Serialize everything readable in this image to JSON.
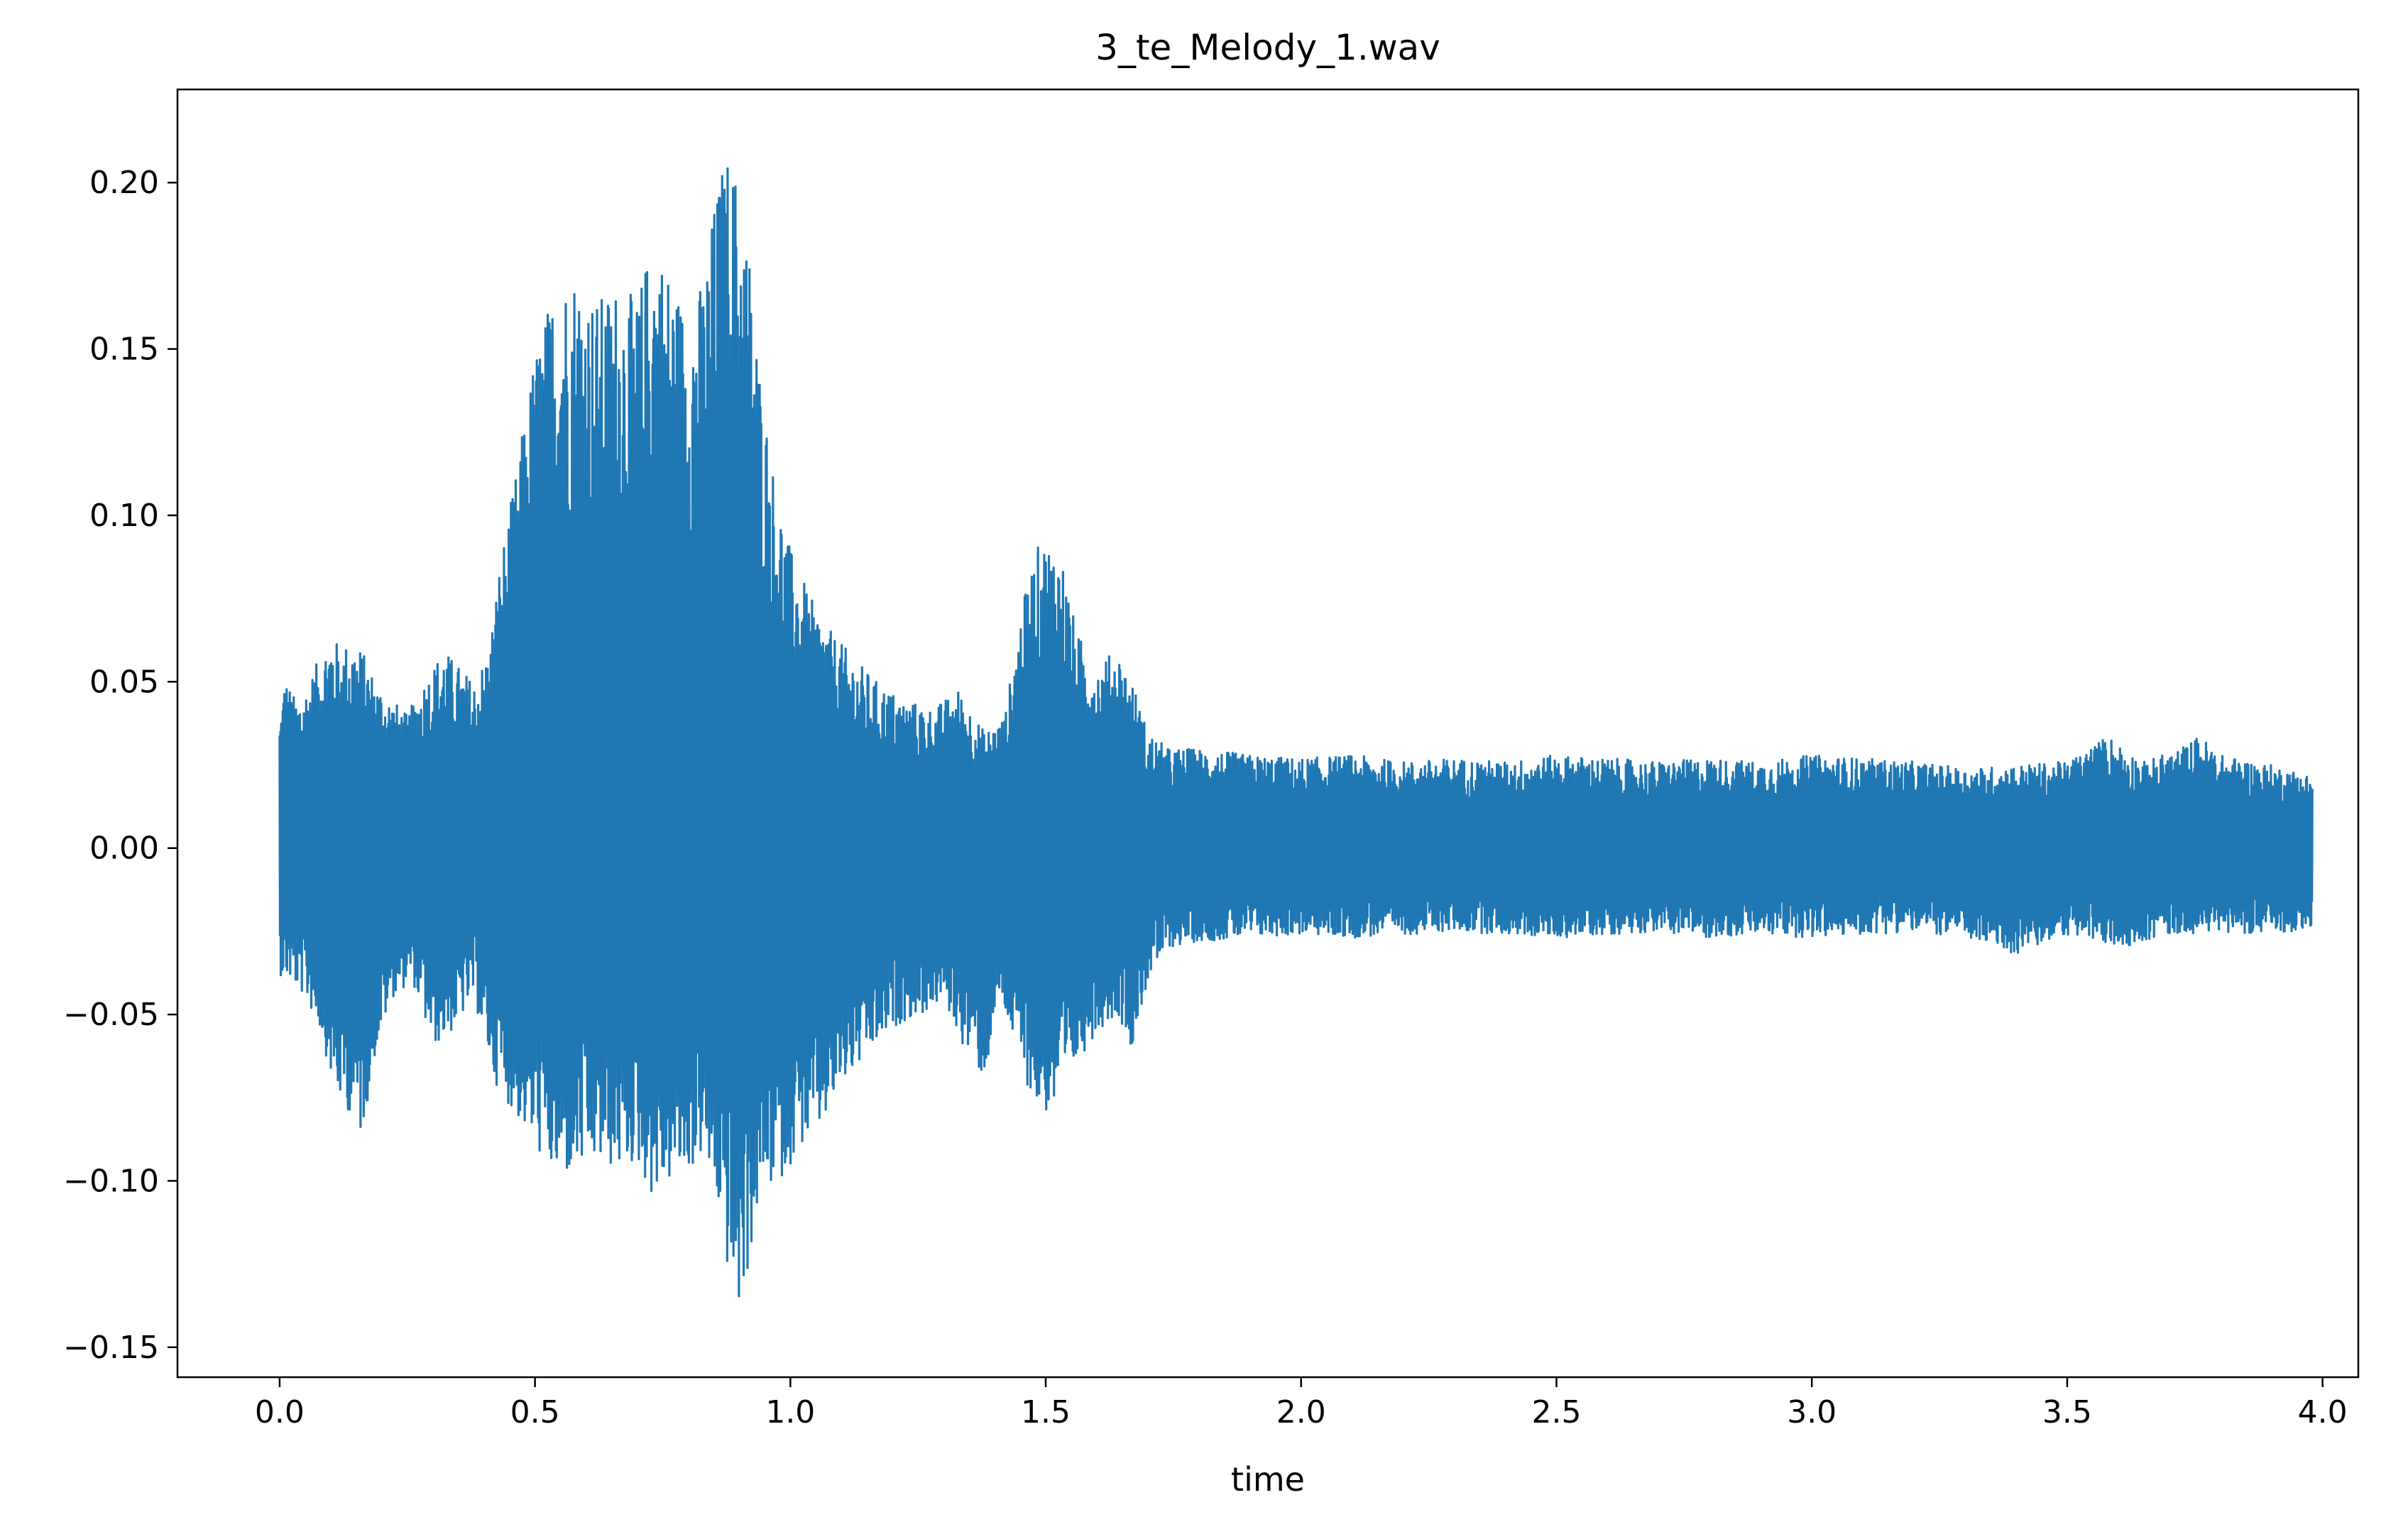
{
  "chart_data": {
    "type": "line",
    "title": "3_te_Melody_1.wav",
    "xlabel": "time",
    "ylabel": "",
    "xlim": [
      -0.2,
      4.07
    ],
    "ylim": [
      -0.159,
      0.228
    ],
    "xticks": [
      0.0,
      0.5,
      1.0,
      1.5,
      2.0,
      2.5,
      3.0,
      3.5,
      4.0
    ],
    "xtick_labels": [
      "0.0",
      "0.5",
      "1.0",
      "1.5",
      "2.0",
      "2.5",
      "3.0",
      "3.5",
      "4.0"
    ],
    "yticks": [
      0.2,
      0.15,
      0.1,
      0.05,
      0.0,
      -0.05,
      -0.1,
      -0.15
    ],
    "ytick_labels": [
      "0.20",
      "0.15",
      "0.10",
      "0.05",
      "0.00",
      "−0.05",
      "−0.10",
      "−0.15"
    ],
    "grid": false,
    "series": [
      {
        "color": "#1f77b4",
        "x_range": [
          0.0,
          3.98
        ],
        "envelope_upper": [
          [
            0.0,
            0.04
          ],
          [
            0.01,
            0.052
          ],
          [
            0.03,
            0.045
          ],
          [
            0.05,
            0.048
          ],
          [
            0.08,
            0.058
          ],
          [
            0.1,
            0.065
          ],
          [
            0.12,
            0.06
          ],
          [
            0.14,
            0.063
          ],
          [
            0.16,
            0.06
          ],
          [
            0.19,
            0.05
          ],
          [
            0.22,
            0.045
          ],
          [
            0.25,
            0.04
          ],
          [
            0.28,
            0.05
          ],
          [
            0.32,
            0.06
          ],
          [
            0.35,
            0.055
          ],
          [
            0.38,
            0.05
          ],
          [
            0.41,
            0.06
          ],
          [
            0.43,
            0.085
          ],
          [
            0.46,
            0.11
          ],
          [
            0.5,
            0.15
          ],
          [
            0.54,
            0.17
          ],
          [
            0.58,
            0.175
          ],
          [
            0.62,
            0.165
          ],
          [
            0.66,
            0.17
          ],
          [
            0.7,
            0.165
          ],
          [
            0.73,
            0.185
          ],
          [
            0.77,
            0.172
          ],
          [
            0.8,
            0.16
          ],
          [
            0.83,
            0.172
          ],
          [
            0.86,
            0.203
          ],
          [
            0.88,
            0.21
          ],
          [
            0.9,
            0.2
          ],
          [
            0.92,
            0.18
          ],
          [
            0.94,
            0.145
          ],
          [
            0.97,
            0.11
          ],
          [
            1.0,
            0.09
          ],
          [
            1.04,
            0.075
          ],
          [
            1.08,
            0.065
          ],
          [
            1.12,
            0.058
          ],
          [
            1.17,
            0.05
          ],
          [
            1.22,
            0.045
          ],
          [
            1.28,
            0.042
          ],
          [
            1.33,
            0.048
          ],
          [
            1.38,
            0.035
          ],
          [
            1.42,
            0.04
          ],
          [
            1.45,
            0.07
          ],
          [
            1.48,
            0.09
          ],
          [
            1.5,
            0.093
          ],
          [
            1.53,
            0.09
          ],
          [
            1.56,
            0.065
          ],
          [
            1.6,
            0.055
          ],
          [
            1.64,
            0.06
          ],
          [
            1.67,
            0.05
          ],
          [
            1.7,
            0.035
          ],
          [
            1.74,
            0.03
          ],
          [
            1.8,
            0.03
          ],
          [
            1.9,
            0.028
          ],
          [
            2.0,
            0.027
          ],
          [
            2.1,
            0.028
          ],
          [
            2.2,
            0.026
          ],
          [
            2.3,
            0.027
          ],
          [
            2.4,
            0.026
          ],
          [
            2.5,
            0.028
          ],
          [
            2.6,
            0.027
          ],
          [
            2.7,
            0.026
          ],
          [
            2.8,
            0.027
          ],
          [
            2.9,
            0.026
          ],
          [
            3.0,
            0.028
          ],
          [
            3.1,
            0.027
          ],
          [
            3.2,
            0.026
          ],
          [
            3.3,
            0.024
          ],
          [
            3.4,
            0.025
          ],
          [
            3.5,
            0.026
          ],
          [
            3.58,
            0.034
          ],
          [
            3.65,
            0.026
          ],
          [
            3.72,
            0.03
          ],
          [
            3.76,
            0.034
          ],
          [
            3.8,
            0.028
          ],
          [
            3.9,
            0.025
          ],
          [
            3.98,
            0.022
          ]
        ],
        "envelope_lower": [
          [
            0.0,
            -0.038
          ],
          [
            0.02,
            -0.04
          ],
          [
            0.05,
            -0.045
          ],
          [
            0.08,
            -0.055
          ],
          [
            0.11,
            -0.075
          ],
          [
            0.14,
            -0.08
          ],
          [
            0.16,
            -0.087
          ],
          [
            0.19,
            -0.06
          ],
          [
            0.22,
            -0.045
          ],
          [
            0.26,
            -0.04
          ],
          [
            0.3,
            -0.06
          ],
          [
            0.34,
            -0.055
          ],
          [
            0.38,
            -0.045
          ],
          [
            0.42,
            -0.07
          ],
          [
            0.46,
            -0.08
          ],
          [
            0.5,
            -0.09
          ],
          [
            0.54,
            -0.1
          ],
          [
            0.58,
            -0.098
          ],
          [
            0.62,
            -0.095
          ],
          [
            0.66,
            -0.097
          ],
          [
            0.7,
            -0.095
          ],
          [
            0.73,
            -0.105
          ],
          [
            0.77,
            -0.1
          ],
          [
            0.8,
            -0.098
          ],
          [
            0.83,
            -0.092
          ],
          [
            0.86,
            -0.11
          ],
          [
            0.88,
            -0.13
          ],
          [
            0.9,
            -0.14
          ],
          [
            0.92,
            -0.125
          ],
          [
            0.94,
            -0.105
          ],
          [
            0.98,
            -0.1
          ],
          [
            1.02,
            -0.09
          ],
          [
            1.06,
            -0.085
          ],
          [
            1.1,
            -0.072
          ],
          [
            1.14,
            -0.065
          ],
          [
            1.18,
            -0.058
          ],
          [
            1.22,
            -0.052
          ],
          [
            1.26,
            -0.05
          ],
          [
            1.3,
            -0.046
          ],
          [
            1.34,
            -0.06
          ],
          [
            1.38,
            -0.07
          ],
          [
            1.41,
            -0.045
          ],
          [
            1.45,
            -0.065
          ],
          [
            1.48,
            -0.078
          ],
          [
            1.5,
            -0.08
          ],
          [
            1.53,
            -0.078
          ],
          [
            1.56,
            -0.065
          ],
          [
            1.6,
            -0.055
          ],
          [
            1.64,
            -0.05
          ],
          [
            1.67,
            -0.06
          ],
          [
            1.7,
            -0.04
          ],
          [
            1.74,
            -0.03
          ],
          [
            1.8,
            -0.028
          ],
          [
            1.9,
            -0.027
          ],
          [
            2.0,
            -0.026
          ],
          [
            2.1,
            -0.027
          ],
          [
            2.2,
            -0.026
          ],
          [
            2.3,
            -0.025
          ],
          [
            2.4,
            -0.026
          ],
          [
            2.5,
            -0.027
          ],
          [
            2.6,
            -0.026
          ],
          [
            2.7,
            -0.025
          ],
          [
            2.8,
            -0.027
          ],
          [
            2.9,
            -0.026
          ],
          [
            3.0,
            -0.027
          ],
          [
            3.1,
            -0.026
          ],
          [
            3.2,
            -0.025
          ],
          [
            3.3,
            -0.027
          ],
          [
            3.4,
            -0.032
          ],
          [
            3.5,
            -0.026
          ],
          [
            3.6,
            -0.03
          ],
          [
            3.7,
            -0.026
          ],
          [
            3.8,
            -0.025
          ],
          [
            3.9,
            -0.026
          ],
          [
            3.98,
            -0.024
          ]
        ]
      }
    ]
  }
}
